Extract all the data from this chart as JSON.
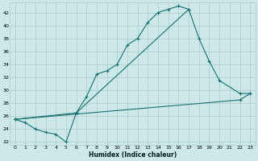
{
  "xlabel": "Humidex (Indice chaleur)",
  "bg_color": "#cce8e8",
  "grid_color": "#aacccc",
  "line_color": "#1a7070",
  "xlim": [
    -0.5,
    23.5
  ],
  "ylim": [
    21.5,
    43.5
  ],
  "yticks": [
    22,
    24,
    26,
    28,
    30,
    32,
    34,
    36,
    38,
    40,
    42
  ],
  "xticks": [
    0,
    1,
    2,
    3,
    4,
    5,
    6,
    7,
    8,
    9,
    10,
    11,
    12,
    13,
    14,
    15,
    16,
    17,
    18,
    19,
    20,
    21,
    22,
    23
  ],
  "curve1_x": [
    0,
    1,
    2,
    3,
    4,
    5,
    6,
    7,
    8,
    9,
    10,
    11,
    12,
    13,
    14,
    15,
    16,
    17
  ],
  "curve1_y": [
    25.5,
    25.0,
    24.0,
    23.5,
    23.2,
    22.0,
    26.5,
    29.0,
    32.5,
    33.0,
    34.0,
    37.0,
    38.0,
    40.5,
    42.0,
    42.5,
    43.0,
    42.5
  ],
  "curve2_x": [
    0,
    6,
    17,
    18,
    19,
    20,
    22,
    23
  ],
  "curve2_y": [
    25.5,
    26.5,
    42.5,
    38.0,
    34.5,
    31.5,
    29.5,
    29.5
  ],
  "curve4_x": [
    0,
    22,
    23
  ],
  "curve4_y": [
    25.5,
    28.5,
    29.5
  ]
}
